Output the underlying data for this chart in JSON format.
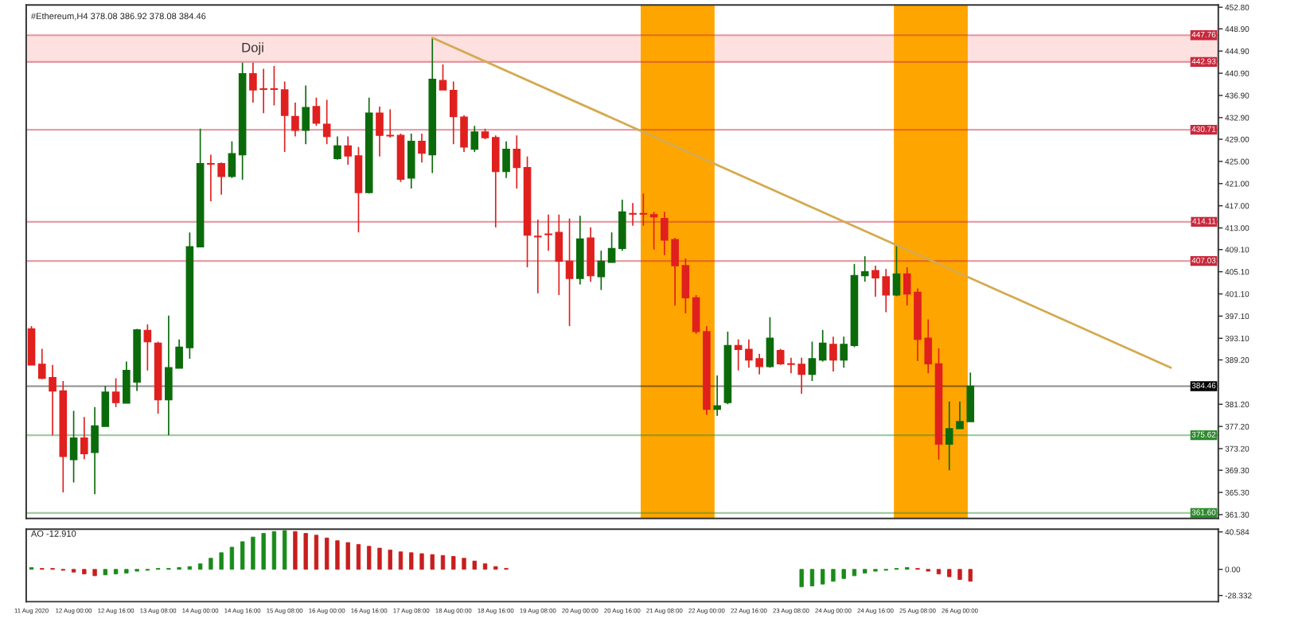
{
  "chart_data": [
    {
      "type": "candlestick",
      "title": "#Ethereum,H4 378.08 386.92 378.08 384.46",
      "x": [
        "2020-08-11T08:00",
        "2020-08-11T12:00",
        "2020-08-11T16:00",
        "2020-08-11T20:00",
        "2020-08-12T00:00",
        "2020-08-12T04:00",
        "2020-08-12T08:00",
        "2020-08-12T12:00",
        "2020-08-12T16:00",
        "2020-08-12T20:00",
        "2020-08-13T00:00",
        "2020-08-13T04:00",
        "2020-08-13T08:00",
        "2020-08-13T12:00",
        "2020-08-13T16:00",
        "2020-08-13T20:00",
        "2020-08-14T00:00",
        "2020-08-14T04:00",
        "2020-08-14T08:00",
        "2020-08-14T12:00",
        "2020-08-14T16:00",
        "2020-08-14T20:00",
        "2020-08-15T00:00",
        "2020-08-15T04:00",
        "2020-08-15T08:00",
        "2020-08-15T12:00",
        "2020-08-15T16:00",
        "2020-08-15T20:00",
        "2020-08-16T00:00",
        "2020-08-16T04:00",
        "2020-08-16T08:00",
        "2020-08-16T12:00",
        "2020-08-16T16:00",
        "2020-08-16T20:00",
        "2020-08-17T00:00",
        "2020-08-17T04:00",
        "2020-08-17T08:00",
        "2020-08-17T12:00",
        "2020-08-17T16:00",
        "2020-08-17T20:00",
        "2020-08-18T00:00",
        "2020-08-18T04:00",
        "2020-08-18T08:00",
        "2020-08-18T12:00",
        "2020-08-18T16:00",
        "2020-08-18T20:00",
        "2020-08-19T00:00",
        "2020-08-19T04:00",
        "2020-08-19T08:00",
        "2020-08-19T12:00",
        "2020-08-19T16:00",
        "2020-08-19T20:00",
        "2020-08-20T00:00",
        "2020-08-20T04:00",
        "2020-08-20T08:00",
        "2020-08-20T12:00",
        "2020-08-20T16:00",
        "2020-08-20T20:00",
        "2020-08-21T00:00",
        "2020-08-21T04:00",
        "2020-08-21T08:00",
        "2020-08-21T12:00",
        "2020-08-21T16:00",
        "2020-08-21T20:00",
        "2020-08-22T00:00",
        "2020-08-22T04:00",
        "2020-08-22T08:00",
        "2020-08-22T12:00",
        "2020-08-22T16:00",
        "2020-08-22T20:00",
        "2020-08-23T00:00",
        "2020-08-23T04:00",
        "2020-08-23T08:00",
        "2020-08-23T12:00",
        "2020-08-23T16:00",
        "2020-08-23T20:00",
        "2020-08-24T00:00",
        "2020-08-24T04:00",
        "2020-08-24T08:00",
        "2020-08-24T12:00",
        "2020-08-24T16:00",
        "2020-08-24T20:00",
        "2020-08-25T00:00",
        "2020-08-25T04:00",
        "2020-08-25T08:00",
        "2020-08-25T12:00",
        "2020-08-25T16:00",
        "2020-08-25T20:00",
        "2020-08-26T00:00",
        "2020-08-26T04:00"
      ],
      "ohlc": [
        [
          394.8,
          395.3,
          388.3,
          388.3
        ],
        [
          388.4,
          391.2,
          385.7,
          385.9
        ],
        [
          386.0,
          388.3,
          375.6,
          383.6
        ],
        [
          383.6,
          385.4,
          365.3,
          371.8
        ],
        [
          371.2,
          380.0,
          367.1,
          375.1
        ],
        [
          375.1,
          378.9,
          371.3,
          372.3
        ],
        [
          372.5,
          380.7,
          365.0,
          377.3
        ],
        [
          377.2,
          384.5,
          377.2,
          383.4
        ],
        [
          383.4,
          385.9,
          380.7,
          381.5
        ],
        [
          381.4,
          388.9,
          381.4,
          387.3
        ],
        [
          385.2,
          394.8,
          383.6,
          394.6
        ],
        [
          394.5,
          395.6,
          387.3,
          392.5
        ],
        [
          392.2,
          392.5,
          379.5,
          382.0
        ],
        [
          382.0,
          397.2,
          375.6,
          387.8
        ],
        [
          387.7,
          392.9,
          387.7,
          391.5
        ],
        [
          391.4,
          412.2,
          389.4,
          409.6
        ],
        [
          409.6,
          430.9,
          409.6,
          424.6
        ],
        [
          424.6,
          426.2,
          417.8,
          424.5
        ],
        [
          424.6,
          424.8,
          419.0,
          422.3
        ],
        [
          422.3,
          428.6,
          422.0,
          426.4
        ],
        [
          426.2,
          442.8,
          421.7,
          440.8
        ],
        [
          440.8,
          442.8,
          435.6,
          437.9
        ],
        [
          438.1,
          441.7,
          433.7,
          438.0
        ],
        [
          438.1,
          442.2,
          435.1,
          438.0
        ],
        [
          437.9,
          439.4,
          426.7,
          433.3
        ],
        [
          433.1,
          435.6,
          429.5,
          430.6
        ],
        [
          430.6,
          438.7,
          428.1,
          434.7
        ],
        [
          434.9,
          436.5,
          431.4,
          431.9
        ],
        [
          431.7,
          436.1,
          428.1,
          429.5
        ],
        [
          425.5,
          429.5,
          425.3,
          427.8
        ],
        [
          427.8,
          429.5,
          424.4,
          426.0
        ],
        [
          426.0,
          427.6,
          412.2,
          419.4
        ],
        [
          419.4,
          436.5,
          419.2,
          433.7
        ],
        [
          433.7,
          434.9,
          425.9,
          429.7
        ],
        [
          429.7,
          434.4,
          429.3,
          429.6
        ],
        [
          429.7,
          430.0,
          421.3,
          421.8
        ],
        [
          422.0,
          430.0,
          420.1,
          428.6
        ],
        [
          428.6,
          430.0,
          424.8,
          426.5
        ],
        [
          426.2,
          447.3,
          422.9,
          439.8
        ],
        [
          439.6,
          442.5,
          437.9,
          437.9
        ],
        [
          437.8,
          439.4,
          428.1,
          433.1
        ],
        [
          433.0,
          433.3,
          426.7,
          427.6
        ],
        [
          427.2,
          431.4,
          426.7,
          430.3
        ],
        [
          430.3,
          430.9,
          429.0,
          429.3
        ],
        [
          429.3,
          429.7,
          413.1,
          423.2
        ],
        [
          423.2,
          428.6,
          422.0,
          427.2
        ],
        [
          427.2,
          429.7,
          420.1,
          423.9
        ],
        [
          423.9,
          425.9,
          405.9,
          411.7
        ],
        [
          411.5,
          414.5,
          401.2,
          411.4
        ],
        [
          411.9,
          415.4,
          408.9,
          411.8
        ],
        [
          412.2,
          415.4,
          400.9,
          407.0
        ],
        [
          407.0,
          414.7,
          395.3,
          403.9
        ],
        [
          403.9,
          415.2,
          402.8,
          411.0
        ],
        [
          411.2,
          413.1,
          403.3,
          404.4
        ],
        [
          404.2,
          408.9,
          401.8,
          407.0
        ],
        [
          406.8,
          412.2,
          406.8,
          409.3
        ],
        [
          409.3,
          418.1,
          408.9,
          415.9
        ],
        [
          415.6,
          417.5,
          413.4,
          415.5
        ],
        [
          415.6,
          419.2,
          413.4,
          415.5
        ],
        [
          415.4,
          415.9,
          409.1,
          415.0
        ],
        [
          414.7,
          415.9,
          408.1,
          410.8
        ],
        [
          410.9,
          411.2,
          399.0,
          406.2
        ],
        [
          406.2,
          407.5,
          397.6,
          400.4
        ],
        [
          400.4,
          400.9,
          393.9,
          394.3
        ],
        [
          394.3,
          395.3,
          379.3,
          380.3
        ],
        [
          380.3,
          386.4,
          379.1,
          380.9
        ],
        [
          381.5,
          394.3,
          381.2,
          391.8
        ],
        [
          391.8,
          392.9,
          387.3,
          391.1
        ],
        [
          391.1,
          392.9,
          387.8,
          389.2
        ],
        [
          389.4,
          390.3,
          386.6,
          388.0
        ],
        [
          388.0,
          396.9,
          387.8,
          393.1
        ],
        [
          390.9,
          391.2,
          388.3,
          388.5
        ],
        [
          388.5,
          389.6,
          386.8,
          388.4
        ],
        [
          388.4,
          389.6,
          383.1,
          386.6
        ],
        [
          386.6,
          392.5,
          385.4,
          389.4
        ],
        [
          389.2,
          394.6,
          388.9,
          392.2
        ],
        [
          392.0,
          393.4,
          387.1,
          389.2
        ],
        [
          389.2,
          393.4,
          387.8,
          392.0
        ],
        [
          391.8,
          406.5,
          391.5,
          404.4
        ],
        [
          404.4,
          407.9,
          403.3,
          405.1
        ],
        [
          405.3,
          406.2,
          400.6,
          404.0
        ],
        [
          404.2,
          405.6,
          397.8,
          400.9
        ],
        [
          400.9,
          409.8,
          400.7,
          404.7
        ],
        [
          404.7,
          405.9,
          399.0,
          401.1
        ],
        [
          401.4,
          402.1,
          389.0,
          392.9
        ],
        [
          393.1,
          396.5,
          386.8,
          388.5
        ],
        [
          388.5,
          391.3,
          371.2,
          374.0
        ],
        [
          374.0,
          381.7,
          369.3,
          376.8
        ],
        [
          376.8,
          381.7,
          376.8,
          378.08
        ],
        [
          378.08,
          386.92,
          378.08,
          384.46
        ]
      ],
      "colors": [
        "#e0201e",
        "#e0201e",
        "#e0201e",
        "#e0201e",
        "#0b6b0b",
        "#e0201e",
        "#0b6b0b",
        "#0b6b0b",
        "#e0201e",
        "#0b6b0b",
        "#0b6b0b",
        "#e0201e",
        "#e0201e",
        "#0b6b0b",
        "#0b6b0b",
        "#0b6b0b",
        "#0b6b0b",
        "#e0201e",
        "#e0201e",
        "#0b6b0b",
        "#0b6b0b",
        "#e0201e",
        "#e0201e",
        "#e0201e",
        "#e0201e",
        "#e0201e",
        "#0b6b0b",
        "#e0201e",
        "#e0201e",
        "#0b6b0b",
        "#e0201e",
        "#e0201e",
        "#0b6b0b",
        "#e0201e",
        "#e0201e",
        "#e0201e",
        "#0b6b0b",
        "#e0201e",
        "#0b6b0b",
        "#e0201e",
        "#e0201e",
        "#e0201e",
        "#0b6b0b",
        "#e0201e",
        "#e0201e",
        "#0b6b0b",
        "#e0201e",
        "#e0201e",
        "#e0201e",
        "#e0201e",
        "#e0201e",
        "#e0201e",
        "#0b6b0b",
        "#e0201e",
        "#0b6b0b",
        "#0b6b0b",
        "#0b6b0b",
        "#e0201e",
        "#e0201e",
        "#e0201e",
        "#e0201e",
        "#e0201e",
        "#e0201e",
        "#e0201e",
        "#e0201e",
        "#0b6b0b",
        "#0b6b0b",
        "#e0201e",
        "#e0201e",
        "#e0201e",
        "#0b6b0b",
        "#e0201e",
        "#e0201e",
        "#e0201e",
        "#0b6b0b",
        "#0b6b0b",
        "#e0201e",
        "#0b6b0b",
        "#0b6b0b",
        "#0b6b0b",
        "#e0201e",
        "#e0201e",
        "#0b6b0b",
        "#e0201e",
        "#e0201e",
        "#e0201e",
        "#e0201e",
        "#0b6b0b",
        "#0b6b0b",
        "#0b6b0b"
      ],
      "series": [
        {
          "type": "line",
          "color": "#d4aa50",
          "x": [
            "2020-08-17T16:00",
            "2020-08-29T08:00"
          ],
          "values": [
            447.3,
            387.8
          ]
        }
      ],
      "ref_lines": [
        {
          "axis": "y",
          "value": 447.76,
          "label": "447.76",
          "color": "#c8283c"
        },
        {
          "axis": "y",
          "value": 442.93,
          "label": "442.93",
          "color": "#c8283c"
        },
        {
          "axis": "y",
          "value": 430.71,
          "label": "430.71",
          "color": "#c8283c"
        },
        {
          "axis": "y",
          "value": 414.11,
          "label": "414.11",
          "color": "#c8283c"
        },
        {
          "axis": "y",
          "value": 407.03,
          "label": "407.03",
          "color": "#c8283c"
        },
        {
          "axis": "y",
          "value": 384.46,
          "label": "384.46",
          "color": "#000000"
        },
        {
          "axis": "y",
          "value": 375.62,
          "label": "375.62",
          "color": "#2e8b2e"
        },
        {
          "axis": "y",
          "value": 361.6,
          "label": "361.60",
          "color": "#2e8b2e"
        }
      ],
      "bands": [
        {
          "axis": "y",
          "from": 442.93,
          "to": 447.76,
          "label": "Doji",
          "color": "#fde0e0"
        },
        {
          "axis": "x",
          "from": "2020-08-20T23:00",
          "to": "2020-08-22T03:00",
          "color": "#ffa500"
        },
        {
          "axis": "x",
          "from": "2020-08-24T23:00",
          "to": "2020-08-26T03:00",
          "color": "#ffa500"
        }
      ],
      "xlim": [
        "2020-08-11T06:00",
        "2020-08-30T02:00"
      ],
      "ylim": [
        360.6,
        453.2
      ],
      "yticks": [
        {
          "value": 452.8,
          "label": "452.80"
        },
        {
          "value": 448.9,
          "label": "448.90"
        },
        {
          "value": 444.9,
          "label": "444.90"
        },
        {
          "value": 440.9,
          "label": "440.90"
        },
        {
          "value": 436.9,
          "label": "436.90"
        },
        {
          "value": 432.9,
          "label": "432.90"
        },
        {
          "value": 429.0,
          "label": "429.00"
        },
        {
          "value": 425.0,
          "label": "425.00"
        },
        {
          "value": 421.0,
          "label": "421.00"
        },
        {
          "value": 417.0,
          "label": "417.00"
        },
        {
          "value": 413.0,
          "label": "413.00"
        },
        {
          "value": 409.1,
          "label": "409.10"
        },
        {
          "value": 405.1,
          "label": "405.10"
        },
        {
          "value": 401.1,
          "label": "401.10"
        },
        {
          "value": 397.1,
          "label": "397.10"
        },
        {
          "value": 393.1,
          "label": "393.10"
        },
        {
          "value": 389.2,
          "label": "389.20"
        },
        {
          "value": 381.2,
          "label": "381.20"
        },
        {
          "value": 377.2,
          "label": "377.20"
        },
        {
          "value": 373.2,
          "label": "373.20"
        },
        {
          "value": 369.3,
          "label": "369.30"
        },
        {
          "value": 365.3,
          "label": "365.30"
        },
        {
          "value": 361.3,
          "label": "361.30"
        }
      ],
      "tick_labels": "y"
    },
    {
      "type": "bar",
      "title": "AO -12.910",
      "x": [
        "2020-08-11T08:00",
        "2020-08-11T12:00",
        "2020-08-11T16:00",
        "2020-08-11T20:00",
        "2020-08-12T00:00",
        "2020-08-12T04:00",
        "2020-08-12T08:00",
        "2020-08-12T12:00",
        "2020-08-12T16:00",
        "2020-08-12T20:00",
        "2020-08-13T00:00",
        "2020-08-13T04:00",
        "2020-08-13T08:00",
        "2020-08-13T12:00",
        "2020-08-13T16:00",
        "2020-08-13T20:00",
        "2020-08-14T00:00",
        "2020-08-14T04:00",
        "2020-08-14T08:00",
        "2020-08-14T12:00",
        "2020-08-14T16:00",
        "2020-08-14T20:00",
        "2020-08-15T00:00",
        "2020-08-15T04:00",
        "2020-08-15T08:00",
        "2020-08-15T12:00",
        "2020-08-15T16:00",
        "2020-08-15T20:00",
        "2020-08-16T00:00",
        "2020-08-16T04:00",
        "2020-08-16T08:00",
        "2020-08-16T12:00",
        "2020-08-16T16:00",
        "2020-08-16T20:00",
        "2020-08-17T00:00",
        "2020-08-17T04:00",
        "2020-08-17T08:00",
        "2020-08-17T12:00",
        "2020-08-17T16:00",
        "2020-08-17T20:00",
        "2020-08-18T00:00",
        "2020-08-18T04:00",
        "2020-08-18T08:00",
        "2020-08-18T12:00",
        "2020-08-18T16:00",
        "2020-08-18T20:00",
        "2020-08-19T00:00",
        "2020-08-19T04:00",
        "2020-08-19T08:00",
        "2020-08-19T12:00",
        "2020-08-19T16:00",
        "2020-08-19T20:00",
        "2020-08-20T00:00",
        "2020-08-20T04:00",
        "2020-08-20T08:00",
        "2020-08-20T12:00",
        "2020-08-20T16:00",
        "2020-08-20T20:00",
        "2020-08-21T00:00",
        "2020-08-21T04:00",
        "2020-08-21T08:00",
        "2020-08-21T12:00",
        "2020-08-21T16:00",
        "2020-08-21T20:00",
        "2020-08-22T00:00",
        "2020-08-22T04:00",
        "2020-08-22T08:00",
        "2020-08-22T12:00",
        "2020-08-22T16:00",
        "2020-08-22T20:00",
        "2020-08-23T00:00",
        "2020-08-23T04:00",
        "2020-08-23T08:00",
        "2020-08-23T12:00",
        "2020-08-23T16:00",
        "2020-08-23T20:00",
        "2020-08-24T00:00",
        "2020-08-24T04:00",
        "2020-08-24T08:00",
        "2020-08-24T12:00",
        "2020-08-24T16:00",
        "2020-08-24T20:00",
        "2020-08-25T00:00",
        "2020-08-25T04:00",
        "2020-08-25T08:00",
        "2020-08-25T12:00",
        "2020-08-25T16:00",
        "2020-08-25T20:00",
        "2020-08-26T00:00",
        "2020-08-26T04:00"
      ],
      "values": [
        2,
        1,
        1,
        -1,
        -3,
        -5,
        -7,
        -6,
        -5,
        -4,
        -2,
        -1,
        1,
        1,
        2,
        3,
        6,
        12,
        18,
        24,
        30,
        35,
        39,
        41,
        42,
        41,
        39,
        37,
        34,
        31,
        29,
        27,
        25,
        23,
        21,
        19,
        18,
        17,
        16,
        15,
        14,
        12,
        9,
        6,
        3,
        1,
        null,
        null,
        null,
        null,
        null,
        null,
        null,
        null,
        null,
        null,
        null,
        null,
        null,
        null,
        null,
        null,
        null,
        null,
        null,
        null,
        null,
        null,
        null,
        null,
        null,
        null,
        null,
        -19,
        -18,
        -16,
        -13,
        -10,
        -7,
        -4,
        -2,
        -1,
        1,
        2,
        1,
        -2,
        -5,
        -8,
        -11,
        -12.91
      ],
      "colors": [
        "#1a8a1a",
        "#c81e1e",
        "#c81e1e",
        "#c81e1e",
        "#c81e1e",
        "#c81e1e",
        "#c81e1e",
        "#1a8a1a",
        "#1a8a1a",
        "#1a8a1a",
        "#1a8a1a",
        "#1a8a1a",
        "#1a8a1a",
        "#1a8a1a",
        "#1a8a1a",
        "#1a8a1a",
        "#1a8a1a",
        "#1a8a1a",
        "#1a8a1a",
        "#1a8a1a",
        "#1a8a1a",
        "#1a8a1a",
        "#1a8a1a",
        "#1a8a1a",
        "#1a8a1a",
        "#c81e1e",
        "#c81e1e",
        "#c81e1e",
        "#c81e1e",
        "#c81e1e",
        "#c81e1e",
        "#c81e1e",
        "#c81e1e",
        "#c81e1e",
        "#c81e1e",
        "#c81e1e",
        "#c81e1e",
        "#c81e1e",
        "#c81e1e",
        "#c81e1e",
        "#c81e1e",
        "#c81e1e",
        "#c81e1e",
        "#c81e1e",
        "#c81e1e",
        "#c81e1e",
        null,
        null,
        null,
        null,
        null,
        null,
        null,
        null,
        null,
        null,
        null,
        null,
        null,
        null,
        null,
        null,
        null,
        null,
        null,
        null,
        null,
        null,
        null,
        null,
        null,
        null,
        null,
        "#1a8a1a",
        "#1a8a1a",
        "#1a8a1a",
        "#1a8a1a",
        "#1a8a1a",
        "#1a8a1a",
        "#1a8a1a",
        "#1a8a1a",
        "#1a8a1a",
        "#1a8a1a",
        "#1a8a1a",
        "#c81e1e",
        "#c81e1e",
        "#c81e1e",
        "#c81e1e",
        "#c81e1e",
        "#c81e1e"
      ],
      "xlim": [
        "2020-08-11T06:00",
        "2020-08-30T02:00"
      ],
      "xticks": [
        {
          "value": "2020-08-11T08:00",
          "label": "11 Aug 2020"
        },
        {
          "value": "2020-08-12T00:00",
          "label": "12 Aug 00:00"
        },
        {
          "value": "2020-08-12T16:00",
          "label": "12 Aug 16:00"
        },
        {
          "value": "2020-08-13T08:00",
          "label": "13 Aug 08:00"
        },
        {
          "value": "2020-08-14T00:00",
          "label": "14 Aug 00:00"
        },
        {
          "value": "2020-08-14T16:00",
          "label": "14 Aug 16:00"
        },
        {
          "value": "2020-08-15T08:00",
          "label": "15 Aug 08:00"
        },
        {
          "value": "2020-08-16T00:00",
          "label": "16 Aug 00:00"
        },
        {
          "value": "2020-08-16T16:00",
          "label": "16 Aug 16:00"
        },
        {
          "value": "2020-08-17T08:00",
          "label": "17 Aug 08:00"
        },
        {
          "value": "2020-08-18T00:00",
          "label": "18 Aug 00:00"
        },
        {
          "value": "2020-08-18T16:00",
          "label": "18 Aug 16:00"
        },
        {
          "value": "2020-08-19T08:00",
          "label": "19 Aug 08:00"
        },
        {
          "value": "2020-08-20T00:00",
          "label": "20 Aug 00:00"
        },
        {
          "value": "2020-08-20T16:00",
          "label": "20 Aug 16:00"
        },
        {
          "value": "2020-08-21T08:00",
          "label": "21 Aug 08:00"
        },
        {
          "value": "2020-08-22T00:00",
          "label": "22 Aug 00:00"
        },
        {
          "value": "2020-08-22T16:00",
          "label": "22 Aug 16:00"
        },
        {
          "value": "2020-08-23T08:00",
          "label": "23 Aug 08:00"
        },
        {
          "value": "2020-08-24T00:00",
          "label": "24 Aug 00:00"
        },
        {
          "value": "2020-08-24T16:00",
          "label": "24 Aug 16:00"
        },
        {
          "value": "2020-08-25T08:00",
          "label": "25 Aug 08:00"
        },
        {
          "value": "2020-08-26T00:00",
          "label": "26 Aug 00:00"
        }
      ],
      "ylim": [
        -35,
        43.5
      ],
      "yticks": [
        40.584,
        {
          "value": 0,
          "label": "0.00"
        },
        -28.332
      ]
    }
  ]
}
